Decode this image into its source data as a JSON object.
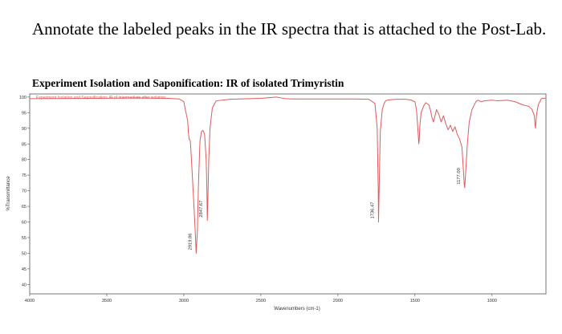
{
  "instruction": "Annotate the labeled peaks in the IR spectra that is attached to the Post-Lab.",
  "chart_data": {
    "type": "line",
    "title": "Experiment Isolation and Saponification: IR of isolated Trimyristin",
    "legend": "Experiment Isolation and Saponification: IR of intermediate after isolation",
    "legend_placement": "top-left",
    "xlabel": "Wavenumbers (cm-1)",
    "ylabel": "%Transmittance",
    "xlim": [
      4000,
      650
    ],
    "ylim": [
      37,
      101
    ],
    "x_reversed": true,
    "grid": false,
    "x_ticks": [
      4000,
      3500,
      3000,
      2500,
      2000,
      1500,
      1000
    ],
    "y_ticks": [
      100,
      95,
      90,
      85,
      80,
      75,
      70,
      65,
      60,
      55,
      50,
      45,
      40
    ],
    "line_color": "#e05a5a",
    "series": [
      {
        "x": [
          4000,
          3600,
          3300,
          3100,
          3030,
          3000,
          2990,
          2975,
          2970,
          2965,
          2958,
          2955,
          2945,
          2935,
          2925,
          2919.86,
          2912,
          2905,
          2895,
          2885,
          2875,
          2865,
          2855,
          2850,
          2847.67,
          2844,
          2838,
          2830,
          2815,
          2790,
          2700,
          2500,
          2400,
          2365,
          2340,
          2300,
          2100,
          1900,
          1800,
          1760,
          1745,
          1738,
          1736.47,
          1733,
          1725,
          1712,
          1700,
          1690,
          1680,
          1650,
          1620,
          1560,
          1530,
          1500,
          1490,
          1480,
          1475,
          1472,
          1468,
          1460,
          1445,
          1430,
          1410,
          1400,
          1390,
          1380,
          1370,
          1360,
          1345,
          1330,
          1315,
          1300,
          1285,
          1270,
          1255,
          1240,
          1225,
          1210,
          1195,
          1185,
          1180,
          1177.0,
          1172,
          1160,
          1148,
          1130,
          1120,
          1110,
          1100,
          1090,
          1070,
          1050,
          1000,
          960,
          900,
          850,
          800,
          760,
          740,
          725,
          721,
          718,
          712,
          700,
          680,
          650
        ],
        "y": [
          99.5,
          99.6,
          99.7,
          99.6,
          99.4,
          98.5,
          96,
          92.5,
          88.5,
          86.5,
          86,
          84,
          75,
          66,
          56,
          50,
          57,
          72,
          86,
          89,
          89.3,
          88,
          80,
          70,
          60.5,
          67,
          80,
          90,
          96.5,
          98.8,
          99.3,
          99.6,
          100.0,
          99.7,
          99.5,
          99.4,
          99.4,
          99.4,
          99.3,
          98,
          90,
          70,
          60,
          69,
          89,
          96,
          98,
          98.8,
          99,
          99.2,
          99.3,
          99.3,
          99.1,
          98.5,
          96,
          89,
          85,
          86.5,
          91,
          95,
          97,
          98.2,
          97.5,
          96,
          93.5,
          92,
          94,
          96,
          94.5,
          92,
          94,
          91.5,
          89.5,
          91,
          89,
          90.5,
          88,
          86.5,
          84,
          76,
          72,
          71,
          75,
          85,
          92,
          96,
          97,
          98,
          98.8,
          99,
          98.5,
          98.8,
          99,
          98.8,
          99,
          98.5,
          97.5,
          97,
          96,
          94,
          91,
          90,
          94,
          97.5,
          99.5,
          99.7
        ]
      }
    ],
    "annotations": [
      {
        "x": 2919.86,
        "y": 50,
        "text": "2919.86"
      },
      {
        "x": 2847.67,
        "y": 60.5,
        "text": "2847.67"
      },
      {
        "x": 1736.47,
        "y": 60,
        "text": "1736.47"
      },
      {
        "x": 1177.0,
        "y": 71,
        "text": "1177.00"
      }
    ]
  }
}
